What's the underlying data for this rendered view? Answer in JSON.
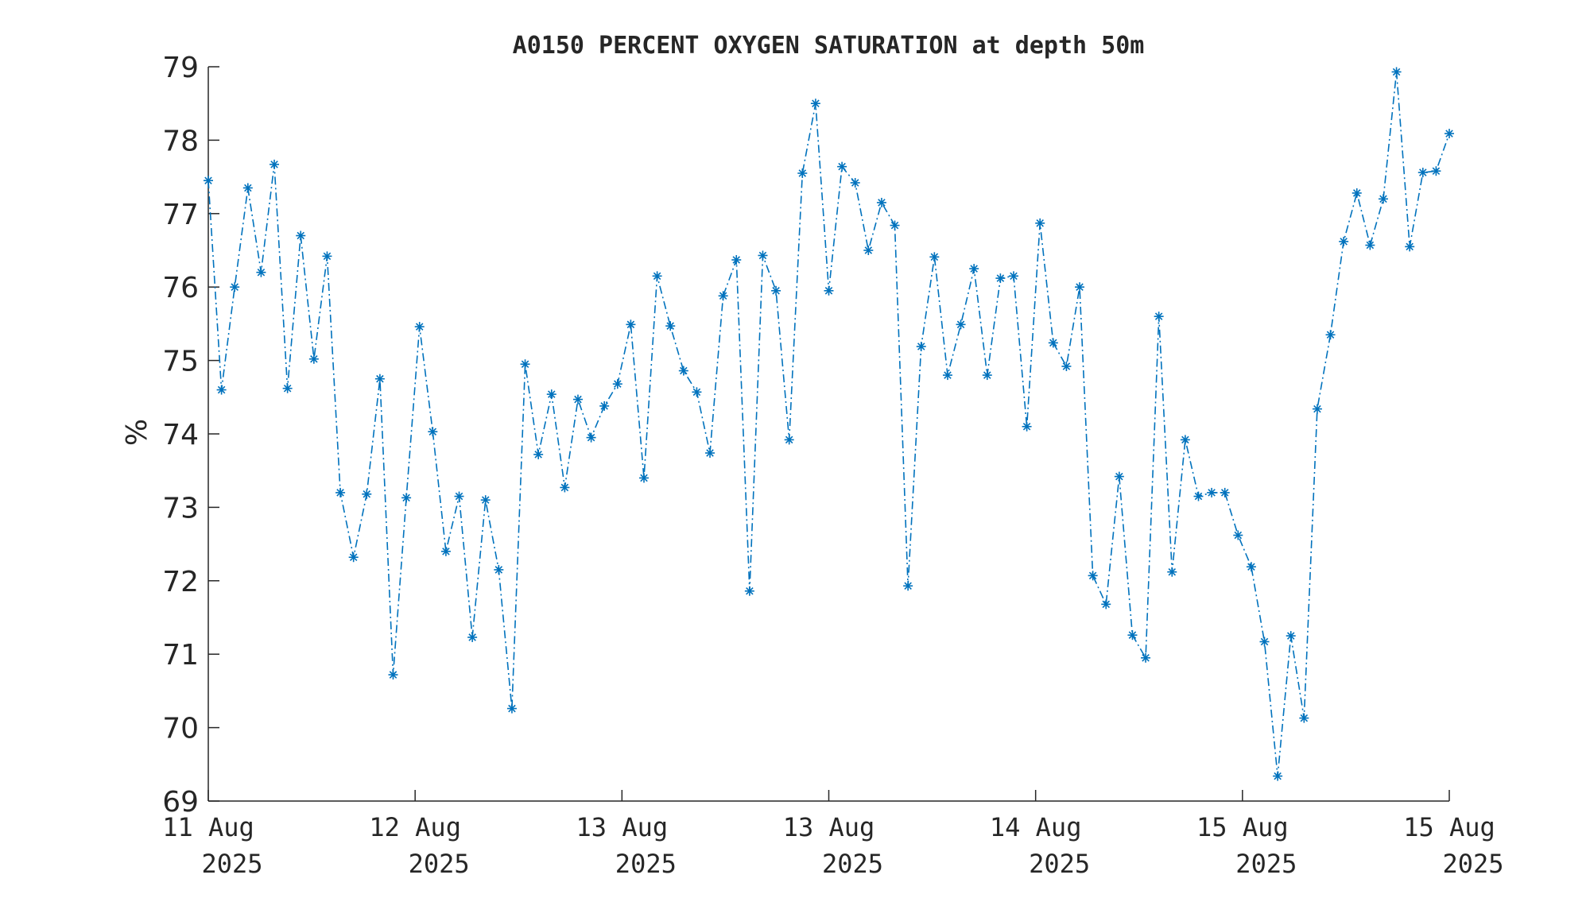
{
  "chart_data": {
    "type": "line",
    "title": "A0150 PERCENT OXYGEN SATURATION at depth 50m",
    "xlabel": "",
    "ylabel": "%",
    "ylim": [
      69,
      79
    ],
    "yticks": [
      69,
      70,
      71,
      72,
      73,
      74,
      75,
      76,
      77,
      78,
      79
    ],
    "xlim": [
      "2025-08-11 00:00",
      "2025-08-15 00:00"
    ],
    "xticks": [
      {
        "line1": "11 Aug",
        "line2": "2025"
      },
      {
        "line1": "12 Aug",
        "line2": "2025"
      },
      {
        "line1": "13 Aug",
        "line2": "2025"
      },
      {
        "line1": "13 Aug",
        "line2": "2025"
      },
      {
        "line1": "14 Aug",
        "line2": "2025"
      },
      {
        "line1": "15 Aug",
        "line2": "2025"
      },
      {
        "line1": "15 Aug",
        "line2": "2025"
      }
    ],
    "grid": false,
    "marker": "asterisk",
    "line_style": "dash-dot",
    "color": "#0072BD",
    "series": [
      {
        "values": [
          77.45,
          74.6,
          76.0,
          77.35,
          76.2,
          77.67,
          74.62,
          76.7,
          75.02,
          76.42,
          73.2,
          72.32,
          73.18,
          74.75,
          70.72,
          73.13,
          75.46,
          74.03,
          72.4,
          73.15,
          71.23,
          73.1,
          72.15,
          70.26,
          74.95,
          73.72,
          74.54,
          73.27,
          74.47,
          73.95,
          74.38,
          74.68,
          75.49,
          73.4,
          76.15,
          75.47,
          74.86,
          74.57,
          73.74,
          75.88,
          76.37,
          71.86,
          76.43,
          75.95,
          73.92,
          77.55,
          78.5,
          75.95,
          77.64,
          77.42,
          76.5,
          77.15,
          76.84,
          71.93,
          75.19,
          76.41,
          74.8,
          75.49,
          76.25,
          74.8,
          76.12,
          76.15,
          74.1,
          76.87,
          75.24,
          74.92,
          76.0,
          72.07,
          71.68,
          73.42,
          71.26,
          70.95,
          75.6,
          72.12,
          73.92,
          73.15,
          73.2,
          73.2,
          72.62,
          72.19,
          71.17,
          69.34,
          71.25,
          70.13,
          74.34,
          75.35,
          76.62,
          77.28,
          76.57,
          77.2,
          78.93,
          76.55,
          77.56,
          77.58,
          78.09
        ]
      }
    ]
  }
}
